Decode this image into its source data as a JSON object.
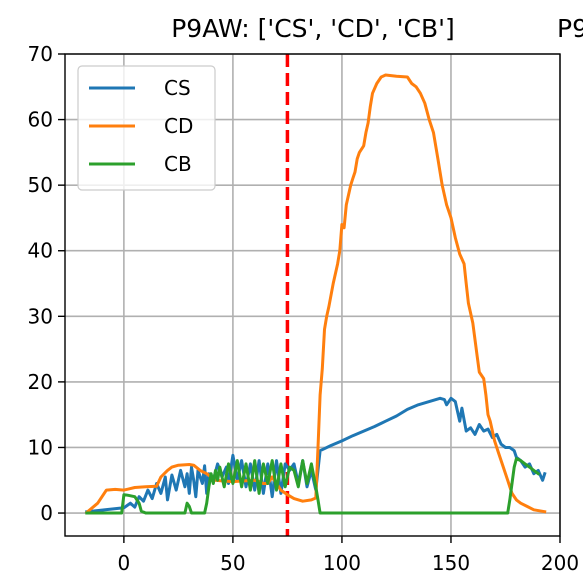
{
  "chart_data": {
    "type": "line",
    "title": "P9AW: ['CS', 'CD', 'CB']",
    "title_cut": "P9",
    "xlabel": "",
    "ylabel": "",
    "xlim": [
      -27,
      200
    ],
    "ylim": [
      -3.5,
      70
    ],
    "x_ticks": [
      0,
      50,
      100,
      150,
      200
    ],
    "y_ticks": [
      0,
      10,
      20,
      30,
      40,
      50,
      60,
      70
    ],
    "grid": true,
    "legend_position": "top-left",
    "vline": {
      "x": 75,
      "color": "#ff0000",
      "style": "dashed"
    },
    "series": [
      {
        "name": "CS",
        "color": "#1f77b4",
        "points": [
          [
            -17,
            0.2
          ],
          [
            0,
            0.8
          ],
          [
            3,
            1.5
          ],
          [
            5,
            0.9
          ],
          [
            7,
            2.5
          ],
          [
            9,
            1.8
          ],
          [
            11,
            3.5
          ],
          [
            13,
            2.2
          ],
          [
            15,
            4.5
          ],
          [
            17,
            3.0
          ],
          [
            19,
            5.5
          ],
          [
            20,
            2.0
          ],
          [
            22,
            5.8
          ],
          [
            24,
            3.5
          ],
          [
            26,
            6.5
          ],
          [
            28,
            4.0
          ],
          [
            29,
            6.0
          ],
          [
            30,
            3.0
          ],
          [
            31,
            7.0
          ],
          [
            32,
            5.0
          ],
          [
            33,
            2.5
          ],
          [
            34,
            6.5
          ],
          [
            36,
            4.5
          ],
          [
            37,
            7.2
          ],
          [
            38,
            3.0
          ],
          [
            39,
            6.0
          ],
          [
            41,
            5.0
          ],
          [
            43,
            7.5
          ],
          [
            45,
            5.5
          ],
          [
            47,
            7.0
          ],
          [
            48,
            4.5
          ],
          [
            50,
            8.8
          ],
          [
            52,
            5.0
          ],
          [
            54,
            8.0
          ],
          [
            56,
            4.0
          ],
          [
            58,
            7.5
          ],
          [
            60,
            3.5
          ],
          [
            62,
            8.0
          ],
          [
            64,
            3.0
          ],
          [
            66,
            7.5
          ],
          [
            68,
            2.5
          ],
          [
            70,
            8.0
          ],
          [
            72,
            3.0
          ],
          [
            74,
            7.5
          ],
          [
            76,
            6.5
          ],
          [
            78,
            7.5
          ],
          [
            80,
            4.5
          ],
          [
            82,
            8.0
          ],
          [
            84,
            4.0
          ],
          [
            86,
            6.5
          ],
          [
            88,
            3.5
          ],
          [
            90,
            9.5
          ],
          [
            95,
            10.3
          ],
          [
            100,
            11.0
          ],
          [
            105,
            11.8
          ],
          [
            110,
            12.5
          ],
          [
            115,
            13.2
          ],
          [
            120,
            14.0
          ],
          [
            125,
            14.8
          ],
          [
            130,
            15.8
          ],
          [
            135,
            16.5
          ],
          [
            140,
            17.0
          ],
          [
            145,
            17.5
          ],
          [
            147,
            17.3
          ],
          [
            148,
            16.5
          ],
          [
            150,
            17.5
          ],
          [
            152,
            17.0
          ],
          [
            154,
            14.0
          ],
          [
            155,
            16.0
          ],
          [
            157,
            12.5
          ],
          [
            159,
            13.0
          ],
          [
            161,
            12.0
          ],
          [
            163,
            13.5
          ],
          [
            165,
            12.5
          ],
          [
            167,
            12.8
          ],
          [
            169,
            11.5
          ],
          [
            171,
            12.0
          ],
          [
            173,
            10.5
          ],
          [
            175,
            10.0
          ],
          [
            177,
            10.0
          ],
          [
            179,
            9.5
          ],
          [
            180,
            8.5
          ],
          [
            182,
            8.0
          ],
          [
            184,
            7.0
          ],
          [
            186,
            7.5
          ],
          [
            188,
            6.0
          ],
          [
            190,
            6.5
          ],
          [
            192,
            5.0
          ],
          [
            193,
            6.0
          ]
        ]
      },
      {
        "name": "CD",
        "color": "#ff7f0e",
        "points": [
          [
            -17,
            0.1
          ],
          [
            -12,
            1.5
          ],
          [
            -8,
            3.5
          ],
          [
            -4,
            3.6
          ],
          [
            0,
            3.5
          ],
          [
            5,
            3.9
          ],
          [
            10,
            4.0
          ],
          [
            15,
            4.1
          ],
          [
            17,
            5.5
          ],
          [
            20,
            6.5
          ],
          [
            22,
            7.0
          ],
          [
            25,
            7.3
          ],
          [
            30,
            7.4
          ],
          [
            32,
            7.3
          ],
          [
            35,
            6.5
          ],
          [
            38,
            6.0
          ],
          [
            40,
            5.5
          ],
          [
            42,
            5.0
          ],
          [
            45,
            4.9
          ],
          [
            50,
            4.8
          ],
          [
            55,
            4.9
          ],
          [
            60,
            5.0
          ],
          [
            62,
            4.8
          ],
          [
            64,
            4.5
          ],
          [
            66,
            4.5
          ],
          [
            68,
            5.5
          ],
          [
            70,
            4.5
          ],
          [
            72,
            3.5
          ],
          [
            75,
            2.8
          ],
          [
            78,
            2.2
          ],
          [
            82,
            1.8
          ],
          [
            86,
            2.0
          ],
          [
            88,
            2.3
          ],
          [
            89,
            10.0
          ],
          [
            90,
            18.0
          ],
          [
            91,
            22.0
          ],
          [
            92,
            28.0
          ],
          [
            93,
            30.0
          ],
          [
            94,
            31.5
          ],
          [
            96,
            35.0
          ],
          [
            98,
            38.0
          ],
          [
            99,
            40.0
          ],
          [
            100,
            44.0
          ],
          [
            101,
            43.5
          ],
          [
            102,
            47.0
          ],
          [
            103,
            48.5
          ],
          [
            104,
            50.0
          ],
          [
            105,
            51.0
          ],
          [
            106,
            52.0
          ],
          [
            107,
            54.0
          ],
          [
            108,
            55.0
          ],
          [
            110,
            56.0
          ],
          [
            111,
            58.0
          ],
          [
            112,
            59.5
          ],
          [
            113,
            62.0
          ],
          [
            114,
            64.0
          ],
          [
            116,
            65.5
          ],
          [
            118,
            66.5
          ],
          [
            120,
            66.8
          ],
          [
            125,
            66.6
          ],
          [
            130,
            66.5
          ],
          [
            132,
            65.5
          ],
          [
            134,
            65.0
          ],
          [
            136,
            64.0
          ],
          [
            138,
            62.5
          ],
          [
            140,
            60.0
          ],
          [
            142,
            58.0
          ],
          [
            144,
            54.0
          ],
          [
            146,
            50.0
          ],
          [
            148,
            47.0
          ],
          [
            150,
            45.0
          ],
          [
            152,
            42.0
          ],
          [
            154,
            39.5
          ],
          [
            156,
            38.0
          ],
          [
            157,
            35.0
          ],
          [
            158,
            32.0
          ],
          [
            160,
            29.0
          ],
          [
            162,
            24.0
          ],
          [
            163,
            21.5
          ],
          [
            165,
            20.5
          ],
          [
            166,
            18.0
          ],
          [
            167,
            15.0
          ],
          [
            168,
            14.0
          ],
          [
            170,
            11.0
          ],
          [
            172,
            9.0
          ],
          [
            174,
            7.0
          ],
          [
            176,
            5.0
          ],
          [
            178,
            3.0
          ],
          [
            180,
            2.0
          ],
          [
            182,
            1.5
          ],
          [
            185,
            1.0
          ],
          [
            188,
            0.5
          ],
          [
            193,
            0.2
          ]
        ]
      },
      {
        "name": "CB",
        "color": "#2ca02c",
        "points": [
          [
            -17,
            0.0
          ],
          [
            -1,
            0.0
          ],
          [
            0,
            2.8
          ],
          [
            2,
            2.7
          ],
          [
            5,
            2.5
          ],
          [
            7,
            1.5
          ],
          [
            8,
            0.3
          ],
          [
            10,
            0.0
          ],
          [
            28,
            0.0
          ],
          [
            29,
            1.5
          ],
          [
            30,
            1.0
          ],
          [
            31,
            0.0
          ],
          [
            37,
            0.0
          ],
          [
            38,
            1.5
          ],
          [
            39,
            4.0
          ],
          [
            40,
            6.0
          ],
          [
            41,
            4.5
          ],
          [
            42,
            6.5
          ],
          [
            43,
            5.0
          ],
          [
            44,
            7.0
          ],
          [
            46,
            4.0
          ],
          [
            48,
            7.5
          ],
          [
            50,
            4.5
          ],
          [
            52,
            8.0
          ],
          [
            54,
            4.0
          ],
          [
            56,
            7.5
          ],
          [
            58,
            3.5
          ],
          [
            60,
            8.0
          ],
          [
            62,
            3.0
          ],
          [
            64,
            7.5
          ],
          [
            66,
            4.5
          ],
          [
            68,
            8.0
          ],
          [
            70,
            3.5
          ],
          [
            72,
            7.5
          ],
          [
            74,
            4.0
          ],
          [
            76,
            7.0
          ],
          [
            78,
            6.5
          ],
          [
            80,
            4.0
          ],
          [
            82,
            8.0
          ],
          [
            84,
            4.5
          ],
          [
            86,
            7.5
          ],
          [
            88,
            4.0
          ],
          [
            89,
            2.0
          ],
          [
            90,
            0.0
          ],
          [
            176,
            0.0
          ],
          [
            177,
            2.0
          ],
          [
            178,
            4.5
          ],
          [
            179,
            7.0
          ],
          [
            180,
            8.3
          ],
          [
            182,
            8.0
          ],
          [
            184,
            7.5
          ],
          [
            186,
            7.0
          ],
          [
            188,
            6.5
          ],
          [
            190,
            6.0
          ]
        ]
      }
    ]
  }
}
